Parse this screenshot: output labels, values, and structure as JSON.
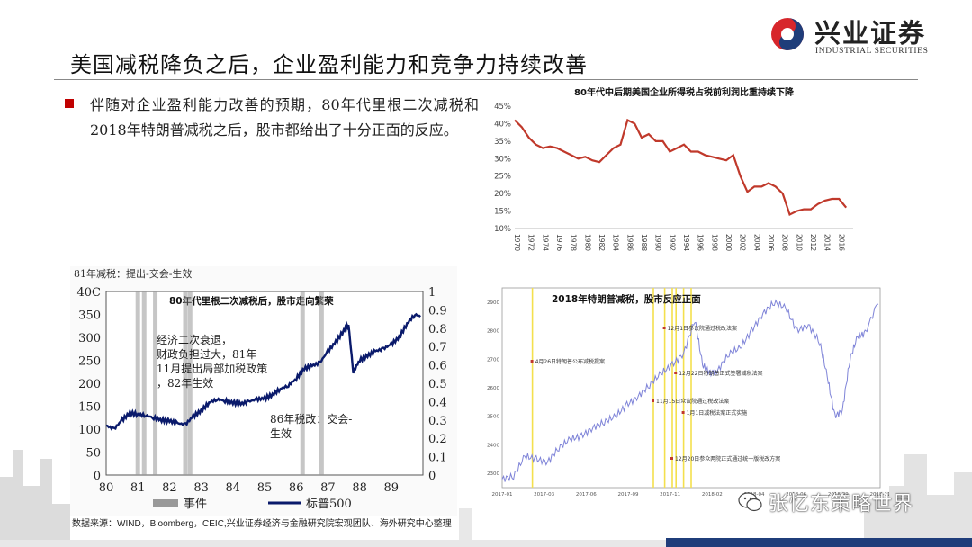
{
  "header": {
    "title": "美国减税降负之后，企业盈利能力和竞争力持续改善",
    "brand_cn": "兴业证券",
    "brand_en": "INDUSTRIAL SECURITIES"
  },
  "bullet": {
    "text": "伴随对企业盈利能力改善的预期，80年代里根二次减税和2018年特朗普减税之后，股市都给出了十分正面的反应。"
  },
  "source": "数据来源：WIND，Bloomberg，CEIC,兴业证券经济与金融研究院宏观团队、海外研究中心整理",
  "watermark": "张忆东策略世界",
  "colors": {
    "accent_red": "#c00000",
    "brand_red": "#d7262b",
    "brand_blue": "#1f3d7a",
    "line_red": "#c0392b",
    "line_navy": "#0a1a6b",
    "event_gray": "#999999",
    "line_blue": "#7f84d8",
    "event_yellow": "#f4e04d"
  },
  "chart_data": [
    {
      "id": "tax_share",
      "type": "line",
      "title": "80年代中后期美国企业所得税占税前利润比重持续下降",
      "x_ticks": [
        "1970",
        "1972",
        "1974",
        "1976",
        "1978",
        "1980",
        "1982",
        "1984",
        "1986",
        "1988",
        "1990",
        "1992",
        "1994",
        "1996",
        "1998",
        "2000",
        "2002",
        "2004",
        "2006",
        "2008",
        "2010",
        "2012",
        "2014",
        "2016"
      ],
      "y_ticks": [
        "45%",
        "40%",
        "35%",
        "30%",
        "25%",
        "20%",
        "15%",
        "10%"
      ],
      "ylim": [
        10,
        45
      ],
      "xlim": [
        1970,
        2018
      ],
      "series": [
        {
          "x": [
            1970,
            1971,
            1972,
            1973,
            1974,
            1975,
            1976,
            1977,
            1978,
            1979,
            1980,
            1981,
            1982,
            1983,
            1984,
            1985,
            1986,
            1987,
            1988,
            1989,
            1990,
            1991,
            1992,
            1993,
            1994,
            1995,
            1996,
            1997,
            1998,
            1999,
            2000,
            2001,
            2002,
            2003,
            2004,
            2005,
            2006,
            2007,
            2008,
            2009,
            2010,
            2011,
            2012,
            2013,
            2014,
            2015,
            2016,
            2017
          ],
          "values": [
            41,
            39,
            36,
            34,
            33,
            33.5,
            33,
            32,
            31,
            30,
            30.5,
            29.5,
            29,
            31,
            33,
            34,
            41,
            40,
            36,
            37,
            35,
            35,
            32,
            33,
            34,
            32,
            32,
            31,
            30.5,
            30,
            29.5,
            31,
            25,
            20.5,
            22,
            22,
            23,
            22,
            20,
            14,
            15,
            15.5,
            15.5,
            17,
            18,
            18.5,
            18.5,
            16
          ]
        }
      ]
    },
    {
      "id": "reagan",
      "type": "line",
      "title": "80年代里根二次减税后，股市走向繁荣",
      "caption": "81年减税：提出-交会-生效",
      "x_ticks": [
        "80",
        "81",
        "82",
        "83",
        "84",
        "85",
        "86",
        "87",
        "88",
        "89"
      ],
      "y_left_ticks": [
        "400",
        "350",
        "300",
        "250",
        "200",
        "150",
        "100",
        "50",
        "0"
      ],
      "y_right_ticks": [
        "1",
        "0.9",
        "0.8",
        "0.7",
        "0.6",
        "0.5",
        "0.4",
        "0.3",
        "0.2",
        "0.1",
        "0"
      ],
      "ylim_left": [
        0,
        400
      ],
      "ylim_right": [
        0,
        1
      ],
      "annotation_1": "经济二次衰退，财政负担过大，81年11月提出局部加税政策，82年生效",
      "annotation_2": "86年税改：交会-生效",
      "legend": [
        {
          "label": "事件",
          "color": "#999999"
        },
        {
          "label": "标普500",
          "color": "#0a1a6b"
        }
      ],
      "events": [
        81.0,
        81.2,
        81.55,
        82.5,
        82.65,
        86.2,
        86.8
      ],
      "series": [
        {
          "name": "标普500",
          "x": [
            80,
            80.25,
            80.5,
            80.75,
            81,
            81.25,
            81.5,
            81.75,
            82,
            82.25,
            82.5,
            82.75,
            83,
            83.25,
            83.5,
            83.75,
            84,
            84.25,
            84.5,
            84.75,
            85,
            85.25,
            85.5,
            85.75,
            86,
            86.25,
            86.5,
            86.75,
            87,
            87.25,
            87.5,
            87.65,
            87.8,
            88,
            88.25,
            88.5,
            88.75,
            89,
            89.25,
            89.5,
            89.75,
            89.95
          ],
          "values": [
            108,
            100,
            120,
            135,
            132,
            130,
            125,
            120,
            118,
            113,
            110,
            128,
            140,
            158,
            165,
            162,
            158,
            155,
            160,
            165,
            167,
            175,
            188,
            195,
            210,
            232,
            238,
            245,
            270,
            290,
            315,
            328,
            225,
            250,
            260,
            270,
            275,
            285,
            300,
            330,
            350,
            345
          ]
        }
      ]
    },
    {
      "id": "trump",
      "type": "line",
      "title": "2018年特朗普减税，股市反应正面",
      "x_ticks": [
        "2017-01",
        "2017-03",
        "2017-06",
        "2017-09",
        "2017-11",
        "2018-02",
        "2018-04",
        "2018-06",
        "2018-09",
        "2018-11"
      ],
      "y_ticks": [
        "2900",
        "2800",
        "2700",
        "2600",
        "2500",
        "2400",
        "2300"
      ],
      "ylim": [
        2250,
        2950
      ],
      "annotations": [
        {
          "text": "4月26日特朗普公布减税提案",
          "x": 0.08
        },
        {
          "text": "12月1日参议院通过税改法案",
          "x": 0.43
        },
        {
          "text": "12月22日特朗普正式签署减税法案",
          "x": 0.46
        },
        {
          "text": "11月15日众议院通过税改法案",
          "x": 0.4
        },
        {
          "text": "1月1日减税法案正式实施",
          "x": 0.48
        },
        {
          "text": "12月20日参众两院正式通过统一版税改方案",
          "x": 0.45
        }
      ],
      "events": [
        0.08,
        0.4,
        0.43,
        0.45,
        0.46,
        0.48,
        0.5
      ],
      "series": [
        {
          "x": [
            0,
            0.03,
            0.06,
            0.09,
            0.12,
            0.15,
            0.18,
            0.21,
            0.24,
            0.27,
            0.3,
            0.33,
            0.36,
            0.39,
            0.42,
            0.45,
            0.48,
            0.51,
            0.53,
            0.55,
            0.57,
            0.6,
            0.63,
            0.66,
            0.69,
            0.72,
            0.75,
            0.78,
            0.81,
            0.84,
            0.86,
            0.88,
            0.9,
            0.92,
            0.94,
            0.96,
            1.0
          ],
          "values": [
            2280,
            2290,
            2360,
            2350,
            2340,
            2390,
            2420,
            2430,
            2460,
            2480,
            2500,
            2540,
            2570,
            2610,
            2650,
            2680,
            2720,
            2840,
            2680,
            2650,
            2660,
            2720,
            2740,
            2800,
            2860,
            2900,
            2880,
            2800,
            2820,
            2760,
            2640,
            2500,
            2520,
            2700,
            2780,
            2790,
            2920
          ]
        }
      ]
    }
  ]
}
